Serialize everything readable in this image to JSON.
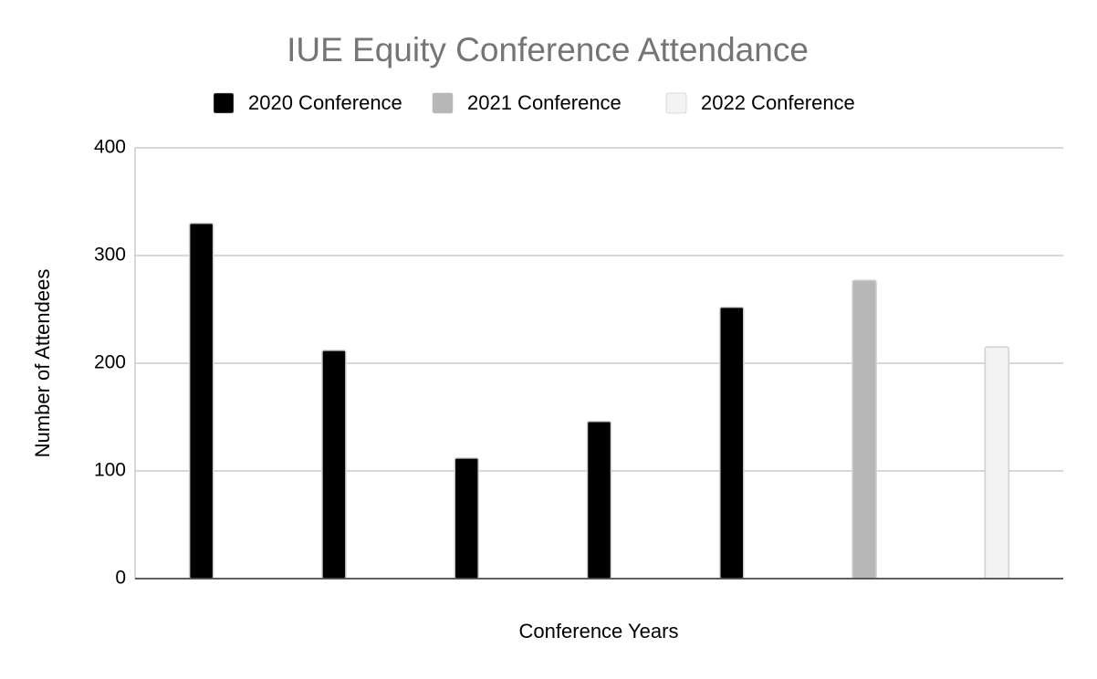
{
  "chart_data": {
    "type": "bar",
    "title": "IUE Equity Conference Attendance",
    "x_label": "Conference Years",
    "y_label": "Number of Attendees",
    "categories": [
      null,
      null,
      null,
      null,
      null,
      null,
      null
    ],
    "series": [
      {
        "name": "2020 Conference",
        "color": "#000000",
        "values": [
          330,
          212,
          112,
          146,
          252,
          null,
          null
        ]
      },
      {
        "name": "2021 Conference",
        "color": "#b7b7b7",
        "values": [
          null,
          null,
          null,
          null,
          null,
          277,
          null
        ]
      },
      {
        "name": "2022 Conference",
        "color": "#f3f3f3",
        "values": [
          null,
          null,
          null,
          null,
          null,
          null,
          215
        ]
      }
    ],
    "ylim": [
      0,
      400
    ],
    "yticks": [
      0,
      100,
      200,
      300,
      400
    ],
    "grid": true,
    "legend": "top"
  }
}
